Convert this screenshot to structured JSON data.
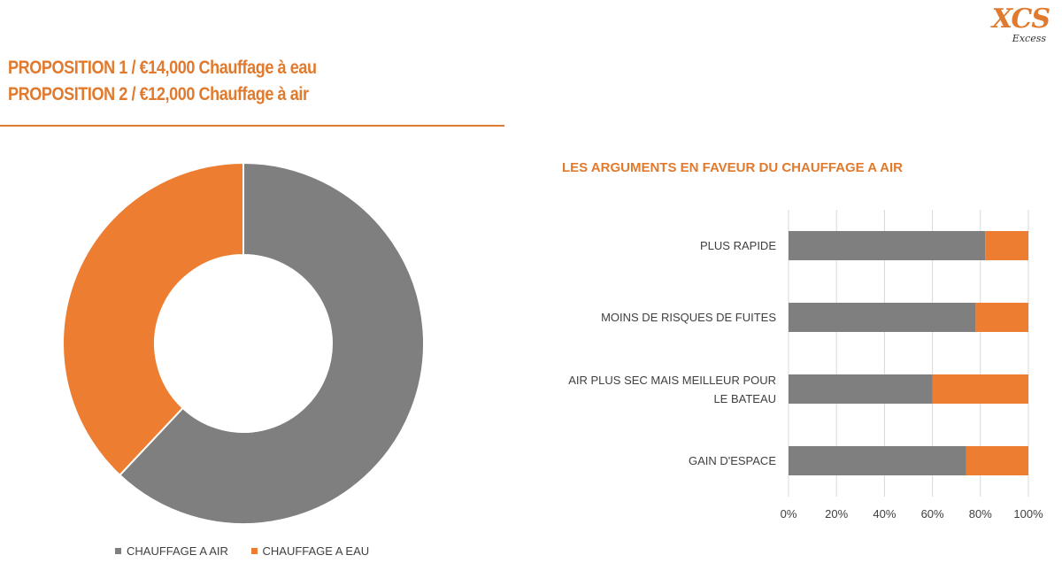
{
  "logo": {
    "mark": "XCS",
    "sub": "Excess"
  },
  "title": {
    "line1": "PROPOSITION 1 / €14,000 Chauffage à eau",
    "line2": "PROPOSITION 2 / €12,000 Chauffage à air"
  },
  "colors": {
    "air": "#7F7F7F",
    "eau": "#ED7D31",
    "accent": "#E07A2E"
  },
  "chart_data": [
    {
      "type": "pie",
      "variant": "donut",
      "title": "",
      "labels": [
        "CHAUFFAGE A AIR",
        "CHAUFFAGE A EAU"
      ],
      "values": [
        62,
        38
      ],
      "legend": "bottom"
    },
    {
      "type": "bar",
      "orientation": "horizontal",
      "stacked": "percent",
      "title": "LES ARGUMENTS EN FAVEUR DU CHAUFFAGE A AIR",
      "categories": [
        [
          "PLUS RAPIDE"
        ],
        [
          "MOINS DE RISQUES DE FUITES"
        ],
        [
          "AIR PLUS SEC MAIS MEILLEUR POUR",
          "LE BATEAU"
        ],
        [
          "GAIN D'ESPACE"
        ]
      ],
      "series": [
        {
          "values": [
            82,
            78,
            60,
            74
          ]
        },
        {
          "values": [
            18,
            22,
            40,
            26
          ]
        }
      ],
      "xlim": [
        0,
        100
      ],
      "xticks": [
        "0%",
        "20%",
        "40%",
        "60%",
        "80%",
        "100%"
      ],
      "grid": true,
      "legend": "none"
    }
  ]
}
